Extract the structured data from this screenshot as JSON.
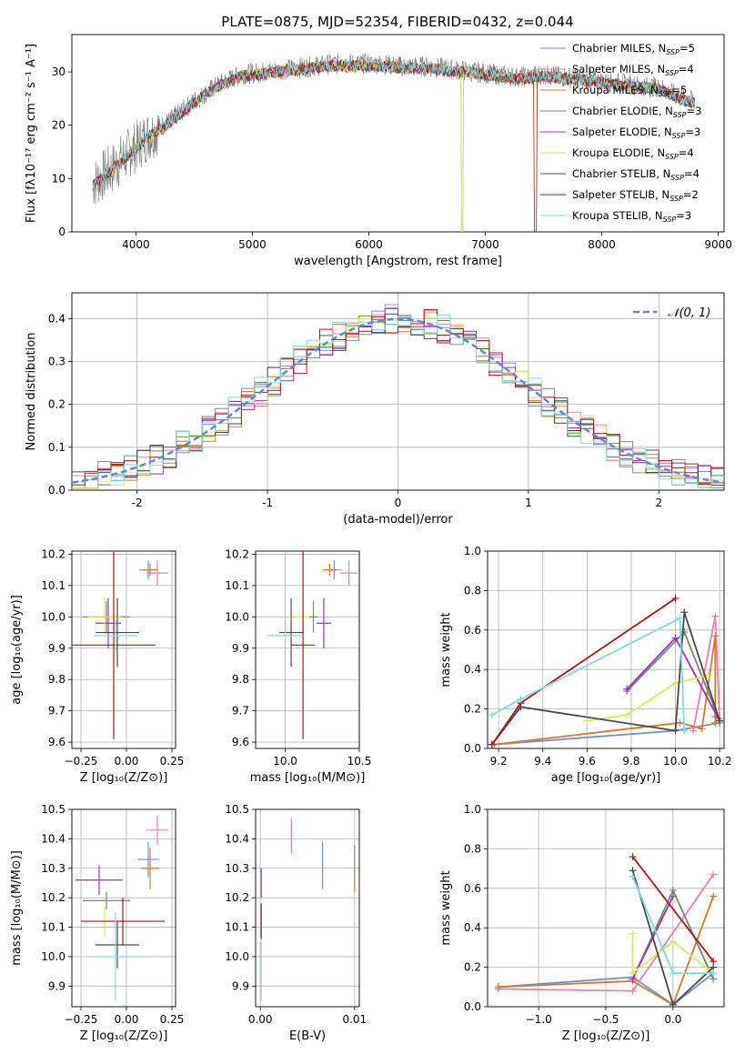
{
  "colors": {
    "chabrier_miles": "#6f8fdc",
    "salpeter_miles": "#e37fb8",
    "kroupa_miles": "#d9782a",
    "chabrier_elodie": "#6a8f6a",
    "salpeter_elodie": "#a12fbf",
    "kroupa_elodie": "#d9ec55",
    "chabrier_stelib": "#4a4a4a",
    "salpeter_stelib": "#b01515",
    "kroupa_stelib": "#7fdbe2",
    "normal_curve": "#5b8ad6",
    "grid": "#b0b0b0"
  },
  "chart_data": [
    {
      "id": "spectrum",
      "type": "line",
      "title": "PLATE=0875, MJD=52354, FIBERID=0432, z=0.044",
      "xlabel": "wavelength [Angstrom, rest frame]",
      "ylabel": "Flux [fλ10⁻¹⁷ erg cm⁻² s⁻¹ A⁻¹]",
      "xlim": [
        3450,
        9050
      ],
      "ylim": [
        0,
        37
      ],
      "xticks": [
        4000,
        5000,
        6000,
        7000,
        8000,
        9000
      ],
      "yticks": [
        0,
        10,
        20,
        30
      ],
      "legend_position": "upper-right",
      "continuum": {
        "x": [
          3630,
          3800,
          3950,
          4100,
          4300,
          4500,
          4700,
          4900,
          5100,
          5300,
          5500,
          5700,
          5900,
          6100,
          6300,
          6500,
          6700,
          6900,
          7100,
          7300,
          7500,
          7700,
          7900,
          8100,
          8300,
          8500,
          8700,
          8800
        ],
        "y": [
          9,
          12,
          15,
          18,
          21,
          24.5,
          27.5,
          29.5,
          30,
          30.5,
          31,
          31.5,
          31.5,
          31.5,
          31,
          31,
          30.5,
          30,
          29.5,
          29,
          29.5,
          29,
          28.5,
          28,
          27.5,
          27,
          25,
          24.5
        ]
      },
      "legend": [
        {
          "key": "chabrier_miles",
          "label": "Chabrier MILES, N",
          "sub": "SSP",
          "suffix": "=5"
        },
        {
          "key": "salpeter_miles",
          "label": "Salpeter MILES, N",
          "sub": "SSP",
          "suffix": "=4"
        },
        {
          "key": "kroupa_miles",
          "label": "Kroupa MILES, N",
          "sub": "SSP",
          "suffix": "=5"
        },
        {
          "key": "chabrier_elodie",
          "label": "Chabrier ELODIE, N",
          "sub": "SSP",
          "suffix": "=3"
        },
        {
          "key": "salpeter_elodie",
          "label": "Salpeter ELODIE, N",
          "sub": "SSP",
          "suffix": "=3"
        },
        {
          "key": "kroupa_elodie",
          "label": "Kroupa ELODIE, N",
          "sub": "SSP",
          "suffix": "=4"
        },
        {
          "key": "chabrier_stelib",
          "label": "Chabrier STELIB, N",
          "sub": "SSP",
          "suffix": "=4"
        },
        {
          "key": "salpeter_stelib",
          "label": "Salpeter STELIB, N",
          "sub": "SSP",
          "suffix": "=2"
        },
        {
          "key": "kroupa_stelib",
          "label": "Kroupa STELIB, N",
          "sub": "SSP",
          "suffix": "=3"
        }
      ]
    },
    {
      "id": "residuals",
      "type": "line",
      "xlabel": "(data-model)/error",
      "ylabel": "Normed distribution",
      "xlim": [
        -2.5,
        2.5
      ],
      "ylim": [
        0,
        0.46
      ],
      "xticks": [
        -2,
        -1,
        0,
        1,
        2
      ],
      "yticks": [
        0.0,
        0.1,
        0.2,
        0.3,
        0.4
      ],
      "legend": "𝒩(0, 1)",
      "legend_position": "upper-right",
      "bin_width": 0.1
    },
    {
      "id": "age_vs_Z",
      "type": "scatter",
      "xlabel": "Z [log₁₀(Z/Z⊙)]",
      "ylabel": "age  [log₁₀(age/yr)]",
      "xlim": [
        -0.3,
        0.27
      ],
      "ylim": [
        9.58,
        10.21
      ],
      "xticks": [
        -0.25,
        0.0,
        0.25
      ],
      "yticks": [
        9.6,
        9.7,
        9.8,
        9.9,
        10.0,
        10.1,
        10.2
      ],
      "points": [
        {
          "key": "chabrier_miles",
          "x": 0.12,
          "y": 10.15,
          "xerr": 0.05,
          "yerr": 0.03
        },
        {
          "key": "salpeter_miles",
          "x": 0.17,
          "y": 10.14,
          "xerr": 0.06,
          "yerr": 0.04
        },
        {
          "key": "kroupa_miles",
          "x": 0.13,
          "y": 10.15,
          "xerr": 0.04,
          "yerr": 0.02
        },
        {
          "key": "chabrier_elodie",
          "x": -0.11,
          "y": 10.0,
          "xerr": 0.13,
          "yerr": 0.05
        },
        {
          "key": "salpeter_elodie",
          "x": -0.1,
          "y": 9.98,
          "xerr": 0.07,
          "yerr": 0.08
        },
        {
          "key": "kroupa_elodie",
          "x": -0.12,
          "y": 10.0,
          "xerr": 0.09,
          "yerr": 0.06
        },
        {
          "key": "chabrier_stelib",
          "x": -0.05,
          "y": 9.95,
          "xerr": 0.12,
          "yerr": 0.11
        },
        {
          "key": "salpeter_stelib",
          "x": -0.07,
          "y": 9.91,
          "xerr": 0.23,
          "yerr": 0.3
        },
        {
          "key": "kroupa_stelib",
          "x": -0.06,
          "y": 9.94,
          "xerr": 0.12,
          "yerr": 0.05
        }
      ]
    },
    {
      "id": "age_vs_mass",
      "type": "scatter",
      "xlabel": "mass [log₁₀(M/M⊙)]",
      "ylabel": "",
      "xlim": [
        9.8,
        10.5
      ],
      "ylim": [
        9.58,
        10.21
      ],
      "xticks": [
        10.0,
        10.5
      ],
      "yticks": [
        9.6,
        9.7,
        9.8,
        9.9,
        10.0,
        10.1,
        10.2
      ],
      "points": [
        {
          "key": "chabrier_miles",
          "x": 10.33,
          "y": 10.15,
          "xerr": 0.05,
          "yerr": 0.03
        },
        {
          "key": "salpeter_miles",
          "x": 10.43,
          "y": 10.14,
          "xerr": 0.06,
          "yerr": 0.04
        },
        {
          "key": "kroupa_miles",
          "x": 10.3,
          "y": 10.15,
          "xerr": 0.05,
          "yerr": 0.02
        },
        {
          "key": "chabrier_elodie",
          "x": 10.19,
          "y": 10.0,
          "xerr": 0.03,
          "yerr": 0.05
        },
        {
          "key": "salpeter_elodie",
          "x": 10.26,
          "y": 9.98,
          "xerr": 0.05,
          "yerr": 0.08
        },
        {
          "key": "kroupa_elodie",
          "x": 10.12,
          "y": 10.0,
          "xerr": 0.04,
          "yerr": 0.06
        },
        {
          "key": "chabrier_stelib",
          "x": 10.04,
          "y": 9.95,
          "xerr": 0.08,
          "yerr": 0.11
        },
        {
          "key": "salpeter_stelib",
          "x": 10.12,
          "y": 9.91,
          "xerr": 0.08,
          "yerr": 0.3
        },
        {
          "key": "kroupa_stelib",
          "x": 10.0,
          "y": 9.94,
          "xerr": 0.12,
          "yerr": 0.05
        }
      ]
    },
    {
      "id": "weight_vs_age",
      "type": "line",
      "xlabel": "age  [log₁₀(age/yr)]",
      "ylabel": "mass weight",
      "xlim": [
        9.15,
        10.22
      ],
      "ylim": [
        0,
        1
      ],
      "xticks": [
        9.2,
        9.4,
        9.6,
        9.8,
        10.0,
        10.2
      ],
      "yticks": [
        0.0,
        0.2,
        0.4,
        0.6,
        0.8,
        1.0
      ],
      "series": [
        {
          "key": "chabrier_miles",
          "x": [
            9.18,
            10.0,
            10.2,
            10.2,
            10.18
          ],
          "y": [
            0.02,
            0.09,
            0.13,
            0.15,
            0.16
          ]
        },
        {
          "key": "salpeter_miles",
          "x": [
            10.08,
            10.18,
            10.2
          ],
          "y": [
            0.09,
            0.67,
            0.15
          ]
        },
        {
          "key": "kroupa_miles",
          "x": [
            9.18,
            10.02,
            10.12,
            10.18,
            10.18
          ],
          "y": [
            0.02,
            0.13,
            0.1,
            0.57,
            0.13
          ]
        },
        {
          "key": "chabrier_elodie",
          "x": [
            9.78,
            10.04,
            10.2
          ],
          "y": [
            0.29,
            0.59,
            0.14
          ]
        },
        {
          "key": "salpeter_elodie",
          "x": [
            9.78,
            10.0,
            10.2
          ],
          "y": [
            0.3,
            0.56,
            0.14
          ]
        },
        {
          "key": "kroupa_elodie",
          "x": [
            9.6,
            9.78,
            10.0,
            10.15
          ],
          "y": [
            0.14,
            0.17,
            0.33,
            0.37
          ]
        },
        {
          "key": "chabrier_stelib",
          "x": [
            9.17,
            9.3,
            10.0,
            10.04,
            10.2
          ],
          "y": [
            0.02,
            0.21,
            0.09,
            0.69,
            0.14
          ]
        },
        {
          "key": "salpeter_stelib",
          "x": [
            9.17,
            9.3,
            10.0
          ],
          "y": [
            0.02,
            0.23,
            0.76
          ]
        },
        {
          "key": "kroupa_stelib",
          "x": [
            9.17,
            9.3,
            10.02,
            10.04
          ],
          "y": [
            0.17,
            0.25,
            0.66,
            0.09
          ]
        }
      ]
    },
    {
      "id": "mass_vs_Z",
      "type": "scatter",
      "xlabel": "Z [log₁₀(Z/Z⊙)]",
      "ylabel": "mass [log₁₀(M/M⊙)]",
      "xlim": [
        -0.3,
        0.27
      ],
      "ylim": [
        9.83,
        10.5
      ],
      "xticks": [
        -0.25,
        0.0,
        0.25
      ],
      "yticks": [
        9.9,
        10.0,
        10.1,
        10.2,
        10.3,
        10.4,
        10.5
      ],
      "points": [
        {
          "key": "chabrier_miles",
          "x": 0.12,
          "y": 10.33,
          "xerr": 0.06,
          "yerr": 0.06
        },
        {
          "key": "salpeter_miles",
          "x": 0.17,
          "y": 10.43,
          "xerr": 0.06,
          "yerr": 0.05
        },
        {
          "key": "kroupa_miles",
          "x": 0.13,
          "y": 10.3,
          "xerr": 0.05,
          "yerr": 0.07
        },
        {
          "key": "chabrier_elodie",
          "x": -0.11,
          "y": 10.19,
          "xerr": 0.13,
          "yerr": 0.03
        },
        {
          "key": "salpeter_elodie",
          "x": -0.15,
          "y": 10.26,
          "xerr": 0.13,
          "yerr": 0.05
        },
        {
          "key": "kroupa_elodie",
          "x": -0.12,
          "y": 10.12,
          "xerr": 0.1,
          "yerr": 0.05
        },
        {
          "key": "chabrier_stelib",
          "x": -0.05,
          "y": 10.04,
          "xerr": 0.12,
          "yerr": 0.08
        },
        {
          "key": "salpeter_stelib",
          "x": -0.02,
          "y": 10.12,
          "xerr": 0.23,
          "yerr": 0.08
        },
        {
          "key": "kroupa_stelib",
          "x": -0.06,
          "y": 10.0,
          "xerr": 0.12,
          "yerr": 0.15
        }
      ]
    },
    {
      "id": "mass_vs_ebv",
      "type": "scatter",
      "xlabel": "E(B-V)",
      "ylabel": "",
      "xlim": [
        -0.0005,
        0.0105
      ],
      "ylim": [
        9.83,
        10.5
      ],
      "xticks": [
        0.0,
        0.01
      ],
      "yticks": [
        9.9,
        10.0,
        10.1,
        10.2,
        10.3,
        10.4,
        10.5
      ],
      "points": [
        {
          "key": "chabrier_miles",
          "x": 0.0066,
          "y": 10.31,
          "xerr": 0,
          "yerr": 0.08
        },
        {
          "key": "salpeter_miles",
          "x": 0.0033,
          "y": 10.41,
          "xerr": 0,
          "yerr": 0.06
        },
        {
          "key": "kroupa_miles",
          "x": 0.01,
          "y": 10.3,
          "xerr": 0,
          "yerr": 0.08
        },
        {
          "key": "salpeter_elodie",
          "x": 0.0001,
          "y": 10.25,
          "xerr": 0,
          "yerr": 0.05
        },
        {
          "key": "salpeter_stelib",
          "x": 0.0001,
          "y": 10.12,
          "xerr": 0,
          "yerr": 0.06
        },
        {
          "key": "kroupa_stelib",
          "x": 0.0001,
          "y": 9.95,
          "xerr": 0,
          "yerr": 0.1
        }
      ]
    },
    {
      "id": "weight_vs_Z",
      "type": "line",
      "xlabel": "Z [log₁₀(Z/Z⊙)]",
      "ylabel": "mass weight",
      "xlim": [
        -1.38,
        0.38
      ],
      "ylim": [
        0,
        1
      ],
      "xticks": [
        -1.0,
        -0.5,
        0.0
      ],
      "yticks": [
        0.0,
        0.2,
        0.4,
        0.6,
        0.8,
        1.0
      ],
      "series": [
        {
          "key": "chabrier_miles",
          "x": [
            -1.3,
            -0.3,
            0.0,
            0.3
          ],
          "y": [
            0.1,
            0.15,
            0.01,
            0.17
          ]
        },
        {
          "key": "salpeter_miles",
          "x": [
            -1.3,
            -0.3,
            0.3
          ],
          "y": [
            0.09,
            0.08,
            0.67
          ]
        },
        {
          "key": "kroupa_miles",
          "x": [
            -1.3,
            -0.3,
            0.0,
            0.3
          ],
          "y": [
            0.1,
            0.13,
            0.01,
            0.56
          ]
        },
        {
          "key": "chabrier_elodie",
          "x": [
            -0.3,
            0.0,
            0.3
          ],
          "y": [
            0.14,
            0.59,
            0.14
          ]
        },
        {
          "key": "salpeter_elodie",
          "x": [
            -0.3,
            0.0
          ],
          "y": [
            0.14,
            0.56
          ]
        },
        {
          "key": "kroupa_elodie",
          "x": [
            -0.3,
            -0.3,
            0.0,
            0.3
          ],
          "y": [
            0.37,
            0.17,
            0.33,
            0.17
          ]
        },
        {
          "key": "chabrier_stelib",
          "x": [
            -0.3,
            0.0,
            0.3
          ],
          "y": [
            0.69,
            0.01,
            0.2
          ]
        },
        {
          "key": "salpeter_stelib",
          "x": [
            -0.3,
            0.3
          ],
          "y": [
            0.76,
            0.23
          ]
        },
        {
          "key": "kroupa_stelib",
          "x": [
            -0.3,
            0.0,
            0.3
          ],
          "y": [
            0.66,
            0.17,
            0.17
          ]
        }
      ]
    }
  ]
}
